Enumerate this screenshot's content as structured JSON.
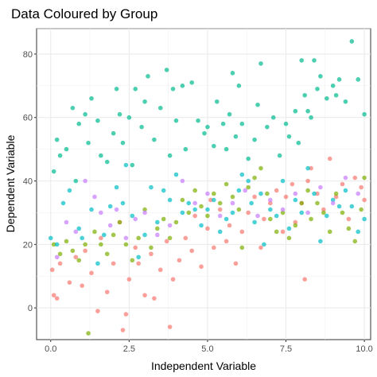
{
  "chart_data": {
    "type": "scatter",
    "title": "Data Coloured by Group",
    "xlabel": "Independent Variable",
    "ylabel": "Dependent Variable",
    "xlim": [
      -0.45,
      10.2
    ],
    "ylim": [
      -10,
      88
    ],
    "x_ticks": [
      "0.0",
      "2.5",
      "5.0",
      "7.5",
      "10.0"
    ],
    "y_ticks": [
      "0",
      "20",
      "40",
      "60",
      "80"
    ],
    "grid": true,
    "legend": "none",
    "point_opacity": 0.7,
    "series": [
      {
        "color": "#F8766D",
        "points": [
          [
            0.05,
            12
          ],
          [
            0.1,
            4
          ],
          [
            0.2,
            3
          ],
          [
            0.3,
            14
          ],
          [
            0.6,
            8
          ],
          [
            0.8,
            16
          ],
          [
            1.0,
            7
          ],
          [
            1.1,
            18
          ],
          [
            1.3,
            11
          ],
          [
            1.5,
            -1
          ],
          [
            1.6,
            22
          ],
          [
            1.8,
            5
          ],
          [
            2.0,
            14
          ],
          [
            2.2,
            27
          ],
          [
            2.3,
            -7
          ],
          [
            2.4,
            -2
          ],
          [
            2.5,
            9
          ],
          [
            2.7,
            19
          ],
          [
            2.8,
            14
          ],
          [
            3.0,
            4
          ],
          [
            3.2,
            17
          ],
          [
            3.3,
            3
          ],
          [
            3.5,
            12
          ],
          [
            3.7,
            21
          ],
          [
            3.8,
            -6
          ],
          [
            3.9,
            9
          ],
          [
            4.1,
            15
          ],
          [
            4.3,
            22
          ],
          [
            4.5,
            18
          ],
          [
            4.6,
            29
          ],
          [
            4.8,
            13
          ],
          [
            5.0,
            25
          ],
          [
            5.1,
            34
          ],
          [
            5.2,
            19
          ],
          [
            5.4,
            31
          ],
          [
            5.6,
            21
          ],
          [
            5.7,
            26
          ],
          [
            5.9,
            14
          ],
          [
            6.1,
            24
          ],
          [
            6.3,
            30
          ],
          [
            6.5,
            35
          ],
          [
            6.7,
            19
          ],
          [
            6.8,
            28
          ],
          [
            7.0,
            33
          ],
          [
            7.2,
            37
          ],
          [
            7.4,
            24
          ],
          [
            7.5,
            35
          ],
          [
            7.7,
            39
          ],
          [
            7.8,
            27
          ],
          [
            8.0,
            33
          ],
          [
            8.1,
            9
          ],
          [
            8.2,
            40
          ],
          [
            8.3,
            44
          ],
          [
            8.5,
            36
          ],
          [
            8.7,
            31
          ],
          [
            8.9,
            47
          ],
          [
            9.1,
            35
          ],
          [
            9.3,
            39
          ],
          [
            9.5,
            28
          ],
          [
            9.7,
            41
          ],
          [
            9.9,
            38
          ],
          [
            10.0,
            34
          ]
        ]
      },
      {
        "color": "#7CAE00",
        "points": [
          [
            0.1,
            20
          ],
          [
            0.3,
            17
          ],
          [
            0.5,
            21
          ],
          [
            0.7,
            18
          ],
          [
            0.9,
            15
          ],
          [
            1.1,
            20
          ],
          [
            1.2,
            -8
          ],
          [
            1.4,
            24
          ],
          [
            1.6,
            20
          ],
          [
            1.8,
            17
          ],
          [
            2.0,
            23
          ],
          [
            2.2,
            27
          ],
          [
            2.4,
            20
          ],
          [
            2.6,
            15
          ],
          [
            2.8,
            22
          ],
          [
            3.0,
            31
          ],
          [
            3.2,
            19
          ],
          [
            3.4,
            25
          ],
          [
            3.6,
            28
          ],
          [
            3.8,
            22
          ],
          [
            4.0,
            27
          ],
          [
            4.2,
            34
          ],
          [
            4.4,
            30
          ],
          [
            4.6,
            37
          ],
          [
            4.8,
            32
          ],
          [
            5.0,
            29
          ],
          [
            5.2,
            36
          ],
          [
            5.4,
            33
          ],
          [
            5.6,
            39
          ],
          [
            5.8,
            35
          ],
          [
            6.0,
            31
          ],
          [
            6.1,
            19
          ],
          [
            6.3,
            38
          ],
          [
            6.5,
            41
          ],
          [
            6.7,
            44
          ],
          [
            6.9,
            36
          ],
          [
            7.0,
            28
          ],
          [
            7.2,
            24
          ],
          [
            7.4,
            30
          ],
          [
            7.6,
            22
          ],
          [
            7.8,
            26
          ],
          [
            8.0,
            33
          ],
          [
            8.2,
            37
          ],
          [
            8.3,
            28
          ],
          [
            8.5,
            33
          ],
          [
            8.7,
            30
          ],
          [
            8.9,
            24
          ],
          [
            9.1,
            36
          ],
          [
            9.3,
            30
          ],
          [
            9.5,
            25
          ],
          [
            9.7,
            21
          ],
          [
            9.9,
            31
          ],
          [
            10.0,
            41
          ]
        ]
      },
      {
        "color": "#00BFC4",
        "points": [
          [
            0.0,
            22
          ],
          [
            0.2,
            20
          ],
          [
            0.4,
            33
          ],
          [
            0.6,
            37
          ],
          [
            0.9,
            25
          ],
          [
            1.0,
            22
          ],
          [
            1.3,
            31
          ],
          [
            1.5,
            14
          ],
          [
            1.7,
            23
          ],
          [
            1.9,
            32
          ],
          [
            2.1,
            38
          ],
          [
            2.3,
            33
          ],
          [
            2.4,
            45
          ],
          [
            2.6,
            29
          ],
          [
            2.8,
            16
          ],
          [
            3.0,
            23
          ],
          [
            3.2,
            38
          ],
          [
            3.4,
            27
          ],
          [
            3.6,
            37
          ],
          [
            3.8,
            34
          ],
          [
            4.0,
            42
          ],
          [
            4.2,
            30
          ],
          [
            4.4,
            33
          ],
          [
            4.6,
            31
          ],
          [
            4.8,
            26
          ],
          [
            5.0,
            31
          ],
          [
            5.2,
            34
          ],
          [
            5.4,
            24
          ],
          [
            5.6,
            28
          ],
          [
            5.8,
            30
          ],
          [
            6.0,
            37
          ],
          [
            6.1,
            42
          ],
          [
            6.3,
            40
          ],
          [
            6.4,
            33
          ],
          [
            6.5,
            27
          ],
          [
            6.7,
            36
          ],
          [
            6.8,
            20
          ],
          [
            7.0,
            31
          ],
          [
            7.2,
            29
          ],
          [
            7.4,
            40
          ],
          [
            7.6,
            25
          ],
          [
            7.8,
            34
          ],
          [
            8.0,
            30
          ],
          [
            8.2,
            44
          ],
          [
            8.4,
            36
          ],
          [
            8.6,
            21
          ],
          [
            8.8,
            29
          ],
          [
            9.0,
            34
          ],
          [
            9.2,
            32
          ],
          [
            9.4,
            37
          ],
          [
            9.6,
            32
          ],
          [
            9.8,
            24
          ],
          [
            10.0,
            28
          ]
        ]
      },
      {
        "color": "#C77CFF",
        "points": [
          [
            0.2,
            16
          ],
          [
            0.5,
            27
          ],
          [
            0.8,
            24
          ],
          [
            1.1,
            40
          ],
          [
            1.4,
            35
          ],
          [
            1.6,
            30
          ],
          [
            1.9,
            26
          ],
          [
            2.1,
            31
          ],
          [
            2.4,
            22
          ],
          [
            2.7,
            28
          ],
          [
            3.0,
            30
          ],
          [
            3.4,
            23
          ],
          [
            3.8,
            26
          ],
          [
            4.2,
            40
          ],
          [
            4.6,
            33
          ],
          [
            5.0,
            36
          ],
          [
            5.4,
            29
          ],
          [
            5.8,
            33
          ],
          [
            6.2,
            37
          ],
          [
            6.6,
            29
          ],
          [
            7.0,
            34
          ],
          [
            7.4,
            31
          ],
          [
            7.8,
            36
          ],
          [
            8.2,
            30
          ],
          [
            8.6,
            38
          ],
          [
            9.0,
            33
          ],
          [
            9.4,
            41
          ],
          [
            9.8,
            36
          ]
        ]
      },
      {
        "color": "#00BA8E",
        "points": [
          [
            0.1,
            43
          ],
          [
            0.2,
            53
          ],
          [
            0.3,
            48
          ],
          [
            0.5,
            50
          ],
          [
            0.7,
            63
          ],
          [
            0.8,
            40
          ],
          [
            0.9,
            58
          ],
          [
            1.1,
            61
          ],
          [
            1.2,
            52
          ],
          [
            1.3,
            66
          ],
          [
            1.5,
            59
          ],
          [
            1.6,
            48
          ],
          [
            1.8,
            46
          ],
          [
            2.0,
            55
          ],
          [
            2.1,
            69
          ],
          [
            2.2,
            61
          ],
          [
            2.3,
            52
          ],
          [
            2.5,
            60
          ],
          [
            2.6,
            45
          ],
          [
            2.7,
            69
          ],
          [
            2.9,
            57
          ],
          [
            3.0,
            65
          ],
          [
            3.1,
            73
          ],
          [
            3.3,
            53
          ],
          [
            3.5,
            63
          ],
          [
            3.7,
            75
          ],
          [
            3.8,
            48
          ],
          [
            3.9,
            69
          ],
          [
            4.0,
            59
          ],
          [
            4.2,
            70
          ],
          [
            4.3,
            50
          ],
          [
            4.5,
            71
          ],
          [
            4.7,
            59
          ],
          [
            4.9,
            55
          ],
          [
            5.0,
            57
          ],
          [
            5.2,
            51
          ],
          [
            5.3,
            65
          ],
          [
            5.5,
            58
          ],
          [
            5.6,
            50
          ],
          [
            5.7,
            61
          ],
          [
            5.8,
            74
          ],
          [
            5.9,
            54
          ],
          [
            6.0,
            70
          ],
          [
            6.1,
            58
          ],
          [
            6.3,
            47
          ],
          [
            6.5,
            53
          ],
          [
            6.6,
            64
          ],
          [
            6.7,
            77
          ],
          [
            6.9,
            57
          ],
          [
            7.1,
            60
          ],
          [
            7.3,
            48
          ],
          [
            7.5,
            58
          ],
          [
            7.6,
            54
          ],
          [
            7.8,
            62
          ],
          [
            7.9,
            52
          ],
          [
            8.0,
            78
          ],
          [
            8.1,
            67
          ],
          [
            8.2,
            62
          ],
          [
            8.3,
            60
          ],
          [
            8.4,
            78
          ],
          [
            8.5,
            69
          ],
          [
            8.6,
            73
          ],
          [
            8.8,
            66
          ],
          [
            9.0,
            70
          ],
          [
            9.1,
            67
          ],
          [
            9.2,
            72
          ],
          [
            9.4,
            65
          ],
          [
            9.6,
            84
          ],
          [
            9.8,
            72
          ],
          [
            10.0,
            61
          ]
        ]
      }
    ]
  }
}
